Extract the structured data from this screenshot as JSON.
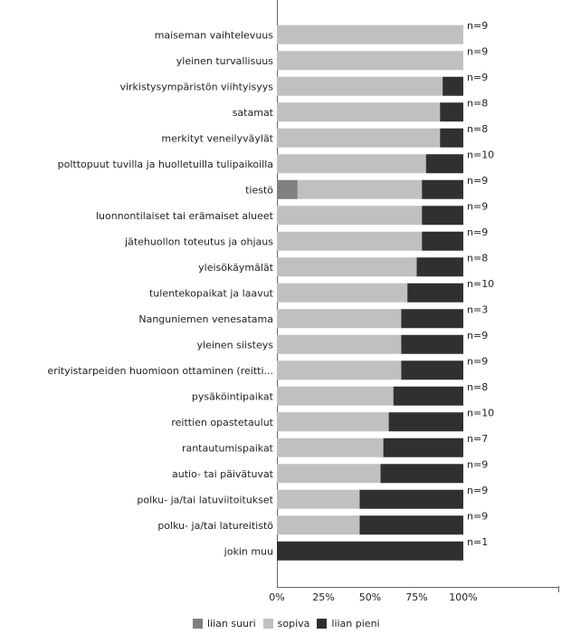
{
  "chart_data": {
    "type": "bar",
    "orientation": "horizontal",
    "stacked": true,
    "title": "",
    "xlabel": "",
    "ylabel": "",
    "xlim": [
      0,
      100
    ],
    "x_tick_labels": [
      "0%",
      "25%",
      "50%",
      "75%",
      "100%"
    ],
    "x_ticks": [
      0,
      25,
      50,
      75,
      100
    ],
    "grid": false,
    "legend_position": "bottom",
    "categories": [
      "maiseman vaihtelevuus",
      "yleinen turvallisuus",
      "virkistysympäristön viihtyisyys",
      "satamat",
      "merkityt veneilyväylät",
      "polttopuut tuvilla ja huolletuilla tulipaikoilla",
      "tiestö",
      "luonnontilaiset tai erämaiset alueet",
      "jätehuollon toteutus ja ohjaus",
      "yleisökäymälät",
      "tulentekopaikat ja laavut",
      "Nanguniemen venesatama",
      "yleinen siisteys",
      "erityistarpeiden huomioon ottaminen (reitti...",
      "pysäköintipaikat",
      "reittien opastetaulut",
      "rantautumispaikat",
      "autio- tai päivätuvat",
      "polku- ja/tai latuviitoitukset",
      "polku- ja/tai latureitistö",
      "jokin muu"
    ],
    "n_labels": [
      "n=9",
      "n=9",
      "n=9",
      "n=8",
      "n=8",
      "n=10",
      "n=9",
      "n=9",
      "n=9",
      "n=8",
      "n=10",
      "n=3",
      "n=9",
      "n=9",
      "n=8",
      "n=10",
      "n=7",
      "n=9",
      "n=9",
      "n=9",
      "n=1"
    ],
    "series": [
      {
        "name": "liian suuri",
        "color": "#808080",
        "values": [
          0,
          0,
          0,
          0,
          0,
          0,
          11.1,
          0,
          0,
          0,
          0,
          0,
          0,
          0,
          0,
          0,
          0,
          0,
          0,
          0,
          0
        ]
      },
      {
        "name": "sopiva",
        "color": "#c0c0c0",
        "values": [
          100,
          100,
          88.9,
          87.5,
          87.5,
          80,
          66.7,
          77.8,
          77.8,
          75,
          70,
          66.7,
          66.7,
          66.7,
          62.5,
          60,
          57.1,
          55.6,
          44.4,
          44.4,
          0
        ]
      },
      {
        "name": "liian pieni",
        "color": "#303030",
        "values": [
          0,
          0,
          11.1,
          12.5,
          12.5,
          20,
          22.2,
          22.2,
          22.2,
          25,
          30,
          33.3,
          33.3,
          33.3,
          37.5,
          40,
          42.9,
          44.4,
          55.6,
          55.6,
          100
        ]
      }
    ]
  }
}
